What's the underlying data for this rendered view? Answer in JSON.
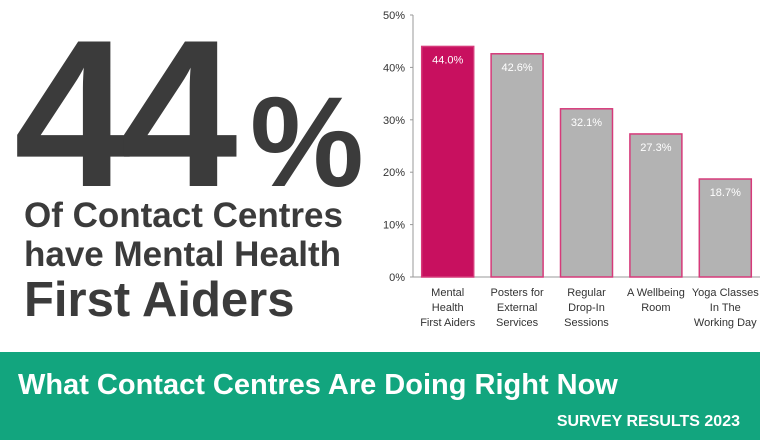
{
  "headline": {
    "stat_number": "44",
    "stat_unit": "%",
    "lines": [
      "Of Contact Centres",
      "have Mental Health",
      "First Aiders"
    ]
  },
  "footer": {
    "title": "What Contact Centres Are Doing Right Now",
    "subtitle": "SURVEY RESULTS 2023"
  },
  "chart_data": {
    "type": "bar",
    "categories": [
      "Mental\nHealth\nFirst Aiders",
      "Posters for\nExternal\nServices",
      "Regular\nDrop-In\nSessions",
      "A Wellbeing\nRoom",
      "Yoga Classes\nIn The\nWorking Day"
    ],
    "values": [
      44.0,
      42.6,
      32.1,
      27.3,
      18.7
    ],
    "value_labels": [
      "44.0%",
      "42.6%",
      "32.1%",
      "27.3%",
      "18.7%"
    ],
    "colors": [
      "#c8105f",
      "#b3b3b3",
      "#b3b3b3",
      "#b3b3b3",
      "#b3b3b3"
    ],
    "edgecolor": "#d63a7a",
    "ylim": [
      0,
      50
    ],
    "yticks": [
      {
        "value": 0,
        "label": "0%"
      },
      {
        "value": 10,
        "label": "10%"
      },
      {
        "value": 20,
        "label": "20%"
      },
      {
        "value": 30,
        "label": "30%"
      },
      {
        "value": 40,
        "label": "40%"
      },
      {
        "value": 50,
        "label": "50%"
      }
    ],
    "grid": false
  }
}
